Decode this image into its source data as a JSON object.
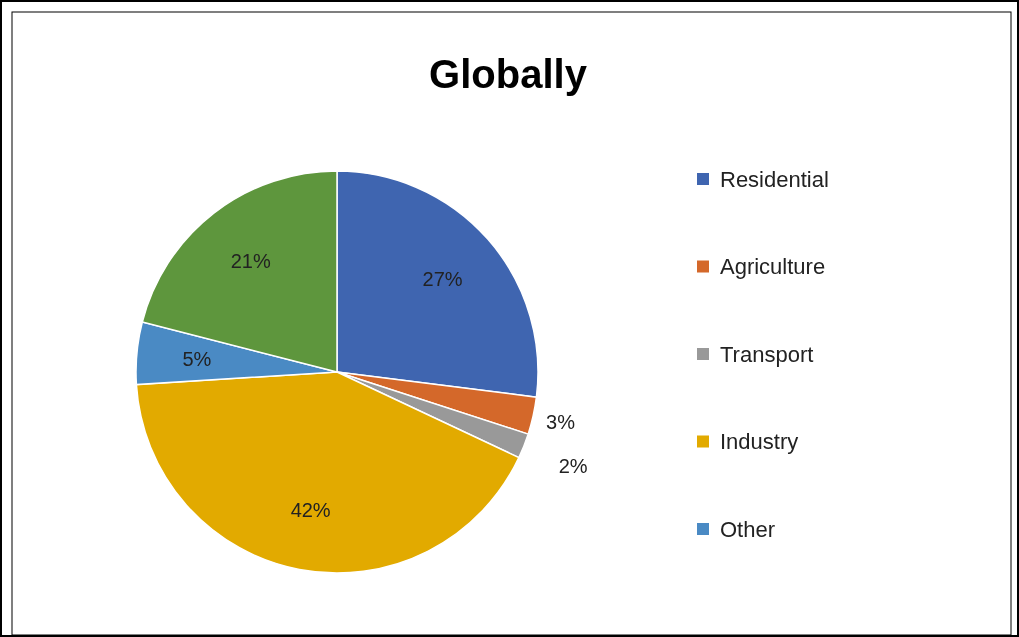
{
  "chart_data": {
    "type": "pie",
    "title": "Globally",
    "categories": [
      "Residential",
      "Agriculture",
      "Transport",
      "Industry",
      "Other",
      null
    ],
    "values": [
      27,
      3,
      2,
      42,
      5,
      21
    ],
    "colors": [
      "#3f65b0",
      "#d4682a",
      "#999999",
      "#e2aa00",
      "#4a8ac4",
      "#5e963d"
    ],
    "value_labels": [
      "27%",
      "3%",
      "2%",
      "42%",
      "5%",
      "21%"
    ],
    "legend": "right"
  }
}
